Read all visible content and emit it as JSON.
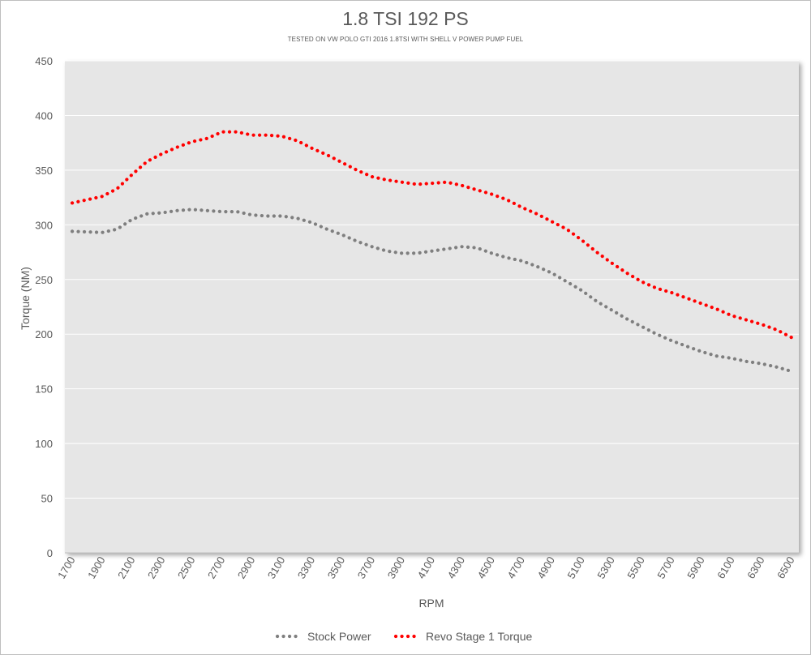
{
  "chart_data": {
    "type": "line",
    "title": "1.8 TSI 192 PS",
    "subtitle": "TESTED ON VW POLO GTI 2016 1.8TSI WITH SHELL V POWER PUMP FUEL",
    "xlabel": "RPM",
    "ylabel": "Torque (NM)",
    "ylim": [
      0,
      450
    ],
    "xlim": [
      1700,
      6500
    ],
    "y_ticks": [
      "0",
      "50",
      "100",
      "150",
      "200",
      "250",
      "300",
      "350",
      "400",
      "450"
    ],
    "x_ticks": [
      "1700",
      "1900",
      "2100",
      "2300",
      "2500",
      "2700",
      "2900",
      "3100",
      "3300",
      "3500",
      "3700",
      "3900",
      "4100",
      "4300",
      "4500",
      "4700",
      "4900",
      "5100",
      "5300",
      "5500",
      "5700",
      "5900",
      "6100",
      "6300",
      "6500"
    ],
    "grid": true,
    "legend_position": "bottom",
    "x": [
      1700,
      1900,
      2000,
      2100,
      2200,
      2300,
      2400,
      2500,
      2600,
      2700,
      2800,
      2900,
      3000,
      3100,
      3200,
      3300,
      3400,
      3500,
      3600,
      3700,
      3800,
      3900,
      4000,
      4100,
      4200,
      4300,
      4400,
      4500,
      4600,
      4700,
      4800,
      4900,
      5000,
      5100,
      5200,
      5300,
      5400,
      5500,
      5600,
      5700,
      5800,
      5900,
      6000,
      6100,
      6200,
      6300,
      6400,
      6500
    ],
    "series": [
      {
        "name": "Stock Power",
        "color": "#7f7f7f",
        "values": [
          294,
          293,
          296,
          305,
          310,
          311,
          313,
          314,
          313,
          312,
          312,
          309,
          308,
          308,
          306,
          302,
          296,
          291,
          285,
          280,
          276,
          274,
          274,
          276,
          278,
          280,
          279,
          274,
          270,
          267,
          262,
          256,
          248,
          240,
          230,
          222,
          214,
          207,
          200,
          194,
          189,
          184,
          180,
          178,
          175,
          173,
          170,
          166
        ]
      },
      {
        "name": "Revo Stage 1 Torque",
        "color": "#ff0000",
        "values": [
          320,
          326,
          333,
          346,
          358,
          365,
          371,
          376,
          379,
          385,
          385,
          382,
          382,
          381,
          377,
          370,
          364,
          357,
          350,
          344,
          341,
          339,
          337,
          338,
          339,
          336,
          332,
          328,
          323,
          316,
          310,
          303,
          296,
          286,
          275,
          265,
          256,
          248,
          242,
          238,
          233,
          228,
          223,
          217,
          213,
          209,
          204,
          197
        ]
      }
    ]
  }
}
